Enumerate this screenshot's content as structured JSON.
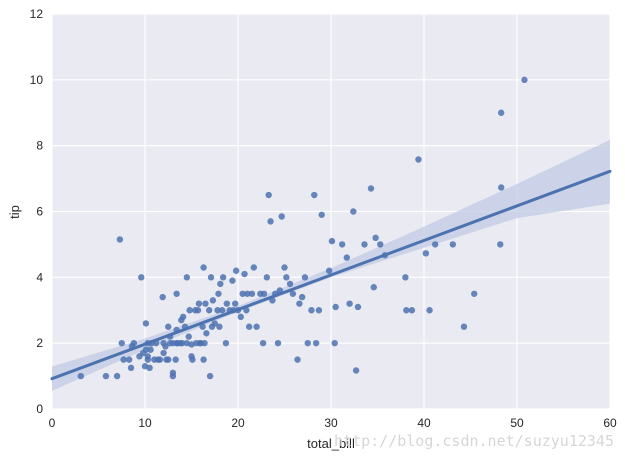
{
  "chart_data": {
    "type": "scatter",
    "title": "",
    "xlabel": "total_bill",
    "ylabel": "tip",
    "xlim": [
      0,
      60
    ],
    "ylim": [
      0,
      12
    ],
    "x_ticks": [
      "0",
      "10",
      "20",
      "30",
      "40",
      "50",
      "60"
    ],
    "y_ticks": [
      "0",
      "2",
      "4",
      "6",
      "8",
      "10",
      "12"
    ],
    "grid": true,
    "style": "seaborn darkgrid with linear regression line and 95% confidence band",
    "colors": {
      "background": "#eaeaf2",
      "grid": "#ffffff",
      "points": "#4c72b0",
      "line": "#4c72b0",
      "band": "#c2cbe4"
    },
    "regression": {
      "intercept": 0.92,
      "slope": 0.105
    },
    "ci_band": [
      {
        "x": 0,
        "lo": 0.55,
        "hi": 1.29
      },
      {
        "x": 10,
        "lo": 1.8,
        "hi": 2.14
      },
      {
        "x": 20,
        "lo": 2.95,
        "hi": 3.13
      },
      {
        "x": 30,
        "lo": 4.0,
        "hi": 4.28
      },
      {
        "x": 40,
        "lo": 4.9,
        "hi": 5.54
      },
      {
        "x": 50,
        "lo": 5.8,
        "hi": 6.84
      },
      {
        "x": 60,
        "lo": 6.24,
        "hi": 8.18
      }
    ],
    "points": [
      [
        3.1,
        1.0
      ],
      [
        5.8,
        1.0
      ],
      [
        7.0,
        1.0
      ],
      [
        7.3,
        5.15
      ],
      [
        7.5,
        2.0
      ],
      [
        7.7,
        1.5
      ],
      [
        8.3,
        1.5
      ],
      [
        8.5,
        1.25
      ],
      [
        8.6,
        1.9
      ],
      [
        8.8,
        2.0
      ],
      [
        9.4,
        1.6
      ],
      [
        9.6,
        4.0
      ],
      [
        9.8,
        1.7
      ],
      [
        10.0,
        1.3
      ],
      [
        10.1,
        1.8
      ],
      [
        10.1,
        2.6
      ],
      [
        10.3,
        2.0
      ],
      [
        10.3,
        1.6
      ],
      [
        10.3,
        1.5
      ],
      [
        10.5,
        1.25
      ],
      [
        10.6,
        1.8
      ],
      [
        10.7,
        2.0
      ],
      [
        11.0,
        1.5
      ],
      [
        11.2,
        2.0
      ],
      [
        11.4,
        1.5
      ],
      [
        11.6,
        1.5
      ],
      [
        11.9,
        3.4
      ],
      [
        12.0,
        1.7
      ],
      [
        12.0,
        2.0
      ],
      [
        12.2,
        1.9
      ],
      [
        12.3,
        1.5
      ],
      [
        12.5,
        2.5
      ],
      [
        12.5,
        1.5
      ],
      [
        12.7,
        2.2
      ],
      [
        12.7,
        2.0
      ],
      [
        13.0,
        2.0
      ],
      [
        13.0,
        1.0
      ],
      [
        13.0,
        1.1
      ],
      [
        13.3,
        1.5
      ],
      [
        13.4,
        2.0
      ],
      [
        13.4,
        2.4
      ],
      [
        13.4,
        3.5
      ],
      [
        13.5,
        2.0
      ],
      [
        13.8,
        2.0
      ],
      [
        13.9,
        2.7
      ],
      [
        14.0,
        2.0
      ],
      [
        14.1,
        2.8
      ],
      [
        14.3,
        2.5
      ],
      [
        14.5,
        2.0
      ],
      [
        14.5,
        4.0
      ],
      [
        14.7,
        2.2
      ],
      [
        14.8,
        3.0
      ],
      [
        15.0,
        1.96
      ],
      [
        15.0,
        1.6
      ],
      [
        15.1,
        1.5
      ],
      [
        15.4,
        3.0
      ],
      [
        15.5,
        2.0
      ],
      [
        15.7,
        3.0
      ],
      [
        15.8,
        3.2
      ],
      [
        15.9,
        2.0
      ],
      [
        16.0,
        2.0
      ],
      [
        16.2,
        2.5
      ],
      [
        16.3,
        1.5
      ],
      [
        16.4,
        2.0
      ],
      [
        16.3,
        4.3
      ],
      [
        16.5,
        3.2
      ],
      [
        16.6,
        2.3
      ],
      [
        16.9,
        3.0
      ],
      [
        17.0,
        1.0
      ],
      [
        17.1,
        4.0
      ],
      [
        17.2,
        2.5
      ],
      [
        17.3,
        3.3
      ],
      [
        17.5,
        2.6
      ],
      [
        17.8,
        3.0
      ],
      [
        17.9,
        3.5
      ],
      [
        18.0,
        2.5
      ],
      [
        18.1,
        3.8
      ],
      [
        18.3,
        3.0
      ],
      [
        18.4,
        4.0
      ],
      [
        18.7,
        2.0
      ],
      [
        18.8,
        3.2
      ],
      [
        19.1,
        3.0
      ],
      [
        19.4,
        3.9
      ],
      [
        19.5,
        3.0
      ],
      [
        19.7,
        3.2
      ],
      [
        19.8,
        4.2
      ],
      [
        20.0,
        3.0
      ],
      [
        20.3,
        2.8
      ],
      [
        20.5,
        3.5
      ],
      [
        20.7,
        4.1
      ],
      [
        20.9,
        3.0
      ],
      [
        21.0,
        3.5
      ],
      [
        21.2,
        2.5
      ],
      [
        21.5,
        3.5
      ],
      [
        21.7,
        4.3
      ],
      [
        22.0,
        2.5
      ],
      [
        22.4,
        3.5
      ],
      [
        22.7,
        2.0
      ],
      [
        22.8,
        3.5
      ],
      [
        23.1,
        4.0
      ],
      [
        23.3,
        6.5
      ],
      [
        23.5,
        5.7
      ],
      [
        23.7,
        3.3
      ],
      [
        24.0,
        3.5
      ],
      [
        24.3,
        2.0
      ],
      [
        24.5,
        3.6
      ],
      [
        24.7,
        5.85
      ],
      [
        25.0,
        4.3
      ],
      [
        25.2,
        4.0
      ],
      [
        25.6,
        3.8
      ],
      [
        25.9,
        3.5
      ],
      [
        26.4,
        1.5
      ],
      [
        26.6,
        3.2
      ],
      [
        26.9,
        3.4
      ],
      [
        27.2,
        4.0
      ],
      [
        27.5,
        2.0
      ],
      [
        27.9,
        3.0
      ],
      [
        28.2,
        6.5
      ],
      [
        28.4,
        2.0
      ],
      [
        28.7,
        3.0
      ],
      [
        29.0,
        5.9
      ],
      [
        29.8,
        4.2
      ],
      [
        30.1,
        5.1
      ],
      [
        30.4,
        2.0
      ],
      [
        30.5,
        3.1
      ],
      [
        31.2,
        5.0
      ],
      [
        31.7,
        4.6
      ],
      [
        32.0,
        3.2
      ],
      [
        32.4,
        6.0
      ],
      [
        32.7,
        1.17
      ],
      [
        32.9,
        3.1
      ],
      [
        33.6,
        5.0
      ],
      [
        34.3,
        6.7
      ],
      [
        34.6,
        3.7
      ],
      [
        34.8,
        5.2
      ],
      [
        35.3,
        5.0
      ],
      [
        35.8,
        4.67
      ],
      [
        38.0,
        4.0
      ],
      [
        38.1,
        3.0
      ],
      [
        38.7,
        3.0
      ],
      [
        39.4,
        7.58
      ],
      [
        40.2,
        4.73
      ],
      [
        40.6,
        3.0
      ],
      [
        41.2,
        5.0
      ],
      [
        43.1,
        5.0
      ],
      [
        44.3,
        2.5
      ],
      [
        45.4,
        3.5
      ],
      [
        48.2,
        5.0
      ],
      [
        48.3,
        6.73
      ],
      [
        48.3,
        9.0
      ],
      [
        50.8,
        10.0
      ]
    ]
  },
  "watermark": "http://blog.csdn.net/suzyu12345"
}
